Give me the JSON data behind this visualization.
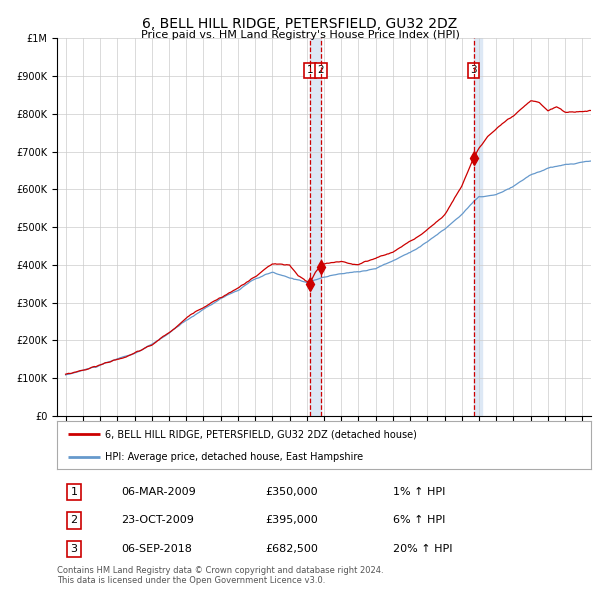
{
  "title": "6, BELL HILL RIDGE, PETERSFIELD, GU32 2DZ",
  "subtitle": "Price paid vs. HM Land Registry's House Price Index (HPI)",
  "legend_line1": "6, BELL HILL RIDGE, PETERSFIELD, GU32 2DZ (detached house)",
  "legend_line2": "HPI: Average price, detached house, East Hampshire",
  "footnote1": "Contains HM Land Registry data © Crown copyright and database right 2024.",
  "footnote2": "This data is licensed under the Open Government Licence v3.0.",
  "transactions": [
    {
      "num": 1,
      "date": "06-MAR-2009",
      "price": 350000,
      "hpi_pct": "1%",
      "date_x": 2009.18
    },
    {
      "num": 2,
      "date": "23-OCT-2009",
      "price": 395000,
      "hpi_pct": "6%",
      "date_x": 2009.81
    },
    {
      "num": 3,
      "date": "06-SEP-2018",
      "price": 682500,
      "hpi_pct": "20%",
      "date_x": 2018.68
    }
  ],
  "hpi_color": "#6699cc",
  "price_color": "#cc0000",
  "marker_color": "#cc0000",
  "vline_color": "#cc0000",
  "highlight_color": "#dde8f5",
  "background_color": "#ffffff",
  "plot_bg_color": "#ffffff",
  "grid_color": "#cccccc",
  "ylim": [
    0,
    1000000
  ],
  "yticks": [
    0,
    100000,
    200000,
    300000,
    400000,
    500000,
    600000,
    700000,
    800000,
    900000,
    1000000
  ],
  "xlim_start": 1994.5,
  "xlim_end": 2025.5,
  "xticks": [
    1995,
    1996,
    1997,
    1998,
    1999,
    2000,
    2001,
    2002,
    2003,
    2004,
    2005,
    2006,
    2007,
    2008,
    2009,
    2010,
    2011,
    2012,
    2013,
    2014,
    2015,
    2016,
    2017,
    2018,
    2019,
    2020,
    2021,
    2022,
    2023,
    2024,
    2025
  ],
  "hpi_key_years": [
    1995,
    1996,
    1997,
    1998,
    1999,
    2000,
    2001,
    2002,
    2003,
    2004,
    2005,
    2006,
    2007,
    2008,
    2009,
    2009.5,
    2010,
    2011,
    2012,
    2013,
    2014,
    2015,
    2016,
    2017,
    2018,
    2018.5,
    2019,
    2020,
    2021,
    2022,
    2023,
    2024,
    2025.5
  ],
  "hpi_key_vals": [
    108000,
    120000,
    133000,
    148000,
    163000,
    185000,
    215000,
    248000,
    278000,
    308000,
    330000,
    358000,
    375000,
    358000,
    348000,
    355000,
    362000,
    370000,
    375000,
    385000,
    405000,
    428000,
    458000,
    490000,
    530000,
    555000,
    575000,
    580000,
    600000,
    630000,
    648000,
    655000,
    665000
  ],
  "price_key_years": [
    1995,
    1996,
    1997,
    1998,
    1999,
    2000,
    2001,
    2002,
    2003,
    2004,
    2005,
    2006,
    2007,
    2008,
    2008.5,
    2009.0,
    2009.18,
    2009.5,
    2009.81,
    2010,
    2011,
    2012,
    2013,
    2014,
    2015,
    2016,
    2017,
    2018,
    2018.68,
    2019,
    2019.5,
    2020,
    2021,
    2022,
    2022.5,
    2023,
    2023.5,
    2024,
    2024.5,
    2025.5
  ],
  "price_key_vals": [
    110000,
    122000,
    136000,
    152000,
    167000,
    188000,
    220000,
    258000,
    290000,
    318000,
    342000,
    372000,
    405000,
    400000,
    370000,
    355000,
    350000,
    378000,
    395000,
    398000,
    405000,
    398000,
    415000,
    432000,
    462000,
    490000,
    532000,
    608000,
    682500,
    710000,
    740000,
    760000,
    790000,
    825000,
    820000,
    800000,
    810000,
    795000,
    795000,
    800000
  ]
}
